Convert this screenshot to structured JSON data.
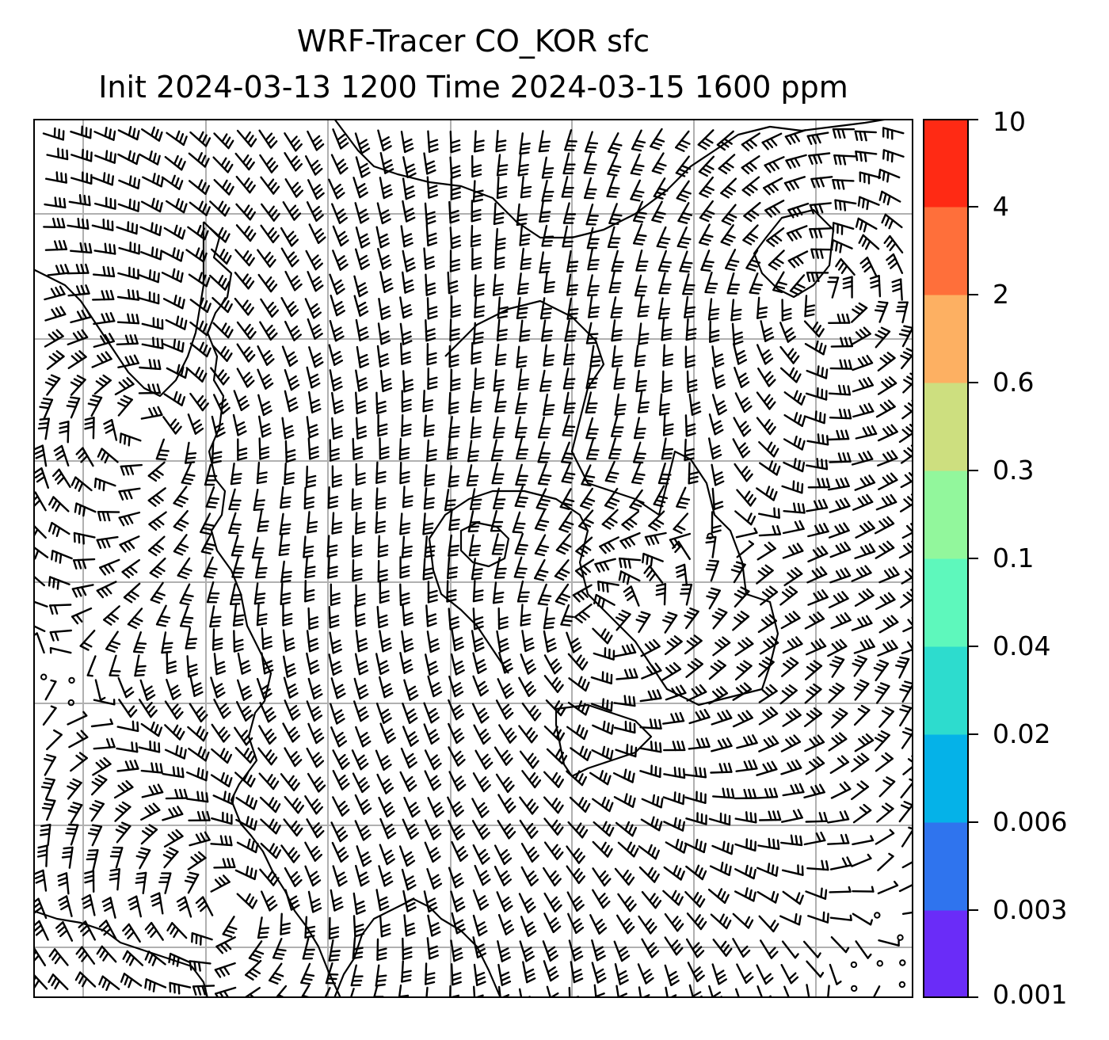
{
  "title": {
    "line1": "WRF-Tracer CO_KOR sfc",
    "line2": "Init 2024-03-13 1200 Time 2024-03-15 1600 ppm"
  },
  "map": {
    "field": "CO_KOR",
    "level": "sfc",
    "gridlines": true,
    "overlay": "wind barbs (knots) with calm circles",
    "coastline_color": "#000000",
    "grid_color": "#b0b0b0",
    "tracer_shading_visible": false
  },
  "colorbar": {
    "levels": [
      "0.001",
      "0.003",
      "0.006",
      "0.02",
      "0.04",
      "0.1",
      "0.3",
      "0.6",
      "2",
      "4",
      "10"
    ],
    "colors": [
      "#6a2cf8",
      "#2f74ee",
      "#05b2e8",
      "#2ddcce",
      "#5ef8bc",
      "#92f79c",
      "#cddf7f",
      "#fdb062",
      "#ff6f3a",
      "#ff2a14"
    ]
  }
}
